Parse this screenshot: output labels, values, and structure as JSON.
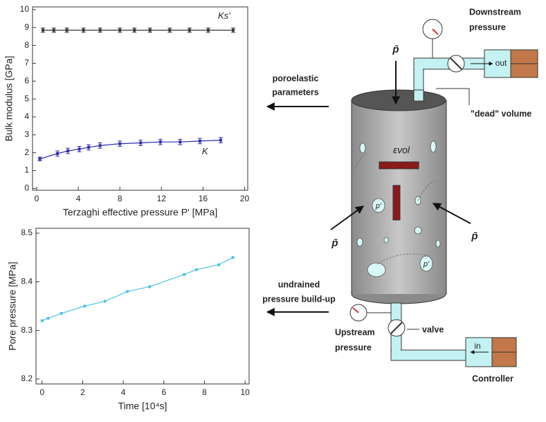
{
  "chart_data": [
    {
      "type": "line",
      "ylabel": "Bulk modulus [GPa]",
      "xlabel": "Terzaghi effective pressure P' [MPa]",
      "xlim": [
        -0.4,
        20.3
      ],
      "ylim": [
        -0.1,
        10.15
      ],
      "xticks": [
        0,
        4,
        8,
        12,
        16,
        20
      ],
      "yticks": [
        0,
        1,
        2,
        3,
        4,
        5,
        6,
        7,
        8,
        9,
        10
      ],
      "series": [
        {
          "name": "Ks'",
          "color": "#333333",
          "x": [
            0.6,
            1.65,
            2.9,
            4.5,
            6.1,
            8.0,
            9.4,
            10.9,
            12.8,
            14.7,
            16.5,
            18.9
          ],
          "values": [
            8.85,
            8.85,
            8.85,
            8.85,
            8.85,
            8.85,
            8.85,
            8.85,
            8.85,
            8.85,
            8.85,
            8.85
          ],
          "errors": [
            0.12,
            0.12,
            0.12,
            0.12,
            0.12,
            0.12,
            0.12,
            0.12,
            0.12,
            0.12,
            0.12,
            0.12
          ]
        },
        {
          "name": "K",
          "color": "#2b2bb0",
          "x": [
            0.3,
            2.0,
            3.0,
            4.1,
            5.0,
            6.1,
            8.0,
            10.0,
            11.9,
            13.8,
            15.7,
            17.7
          ],
          "values": [
            1.65,
            1.95,
            2.1,
            2.2,
            2.3,
            2.4,
            2.5,
            2.55,
            2.6,
            2.6,
            2.65,
            2.7
          ],
          "errors": [
            0.1,
            0.15,
            0.15,
            0.15,
            0.15,
            0.15,
            0.15,
            0.15,
            0.15,
            0.15,
            0.15,
            0.15
          ]
        }
      ]
    },
    {
      "type": "line",
      "ylabel": "Pore pressure [MPa]",
      "xlabel": "Time [10⁴s]",
      "xlim": [
        -0.3,
        10.2
      ],
      "ylim": [
        8.19,
        8.51
      ],
      "xticks": [
        0,
        2,
        4,
        6,
        8,
        10
      ],
      "yticks": [
        8.2,
        8.3,
        8.4,
        8.5
      ],
      "series": [
        {
          "color": "#4fc3e8",
          "x": [
            0,
            0.3,
            0.95,
            2.1,
            3.1,
            4.2,
            5.3,
            7.0,
            7.6,
            8.7,
            9.4
          ],
          "values": [
            8.32,
            8.325,
            8.335,
            8.35,
            8.36,
            8.38,
            8.39,
            8.415,
            8.425,
            8.435,
            8.45
          ]
        }
      ]
    }
  ],
  "diagram": {
    "downstream_label": [
      "Downstream",
      "pressure"
    ],
    "out_label": "out",
    "load_symbol": "p̄",
    "dead_volume_label": "\"dead\" volume",
    "poroelastic_label": [
      "poroelastic",
      "parameters"
    ],
    "strain_label": "εvol",
    "local_pressure": "p'",
    "undrained_label": [
      "undrained",
      "pressure build-up"
    ],
    "upstream_label": [
      "Upstream",
      "pressure"
    ],
    "valve_label": "valve",
    "in_label": "in",
    "controller_label": "Controller"
  }
}
